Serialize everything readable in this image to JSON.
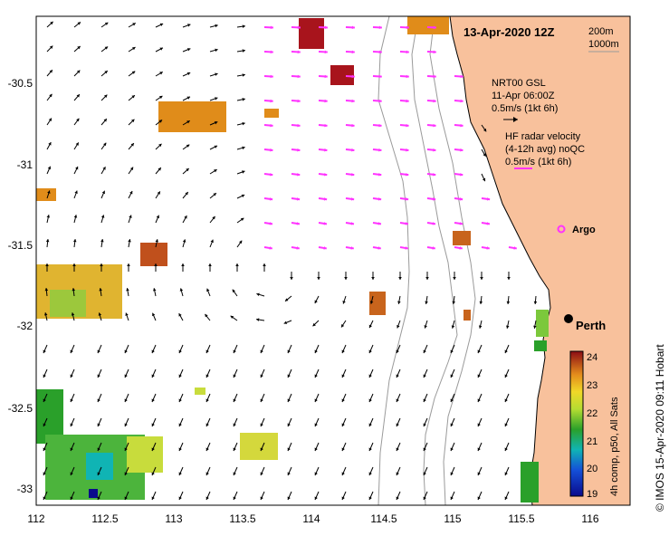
{
  "title": "13-Apr-2020 12Z",
  "scale_legend": {
    "contour1": "200m",
    "contour2": "1000m"
  },
  "gsl_legend": {
    "line1": "NRT00 GSL",
    "line2": "11-Apr 06:00Z",
    "line3": "0.5m/s (1kt 6h)"
  },
  "radar_legend": {
    "line1": "HF radar velocity",
    "line2": "(4-12h avg) noQC",
    "line3": "0.5m/s (1kt 6h)"
  },
  "argo_label": "Argo",
  "city_label": "Perth",
  "colorbar": {
    "label": "4h comp, p50, All Sats",
    "ticks": [
      "24",
      "23",
      "22",
      "21",
      "20",
      "19"
    ]
  },
  "credit": "© IMOS 15-Apr-2020 09:11 Hobart",
  "x_ticks": [
    "112",
    "112.5",
    "113",
    "113.5",
    "114",
    "114.5",
    "115",
    "115.5",
    "116"
  ],
  "y_ticks": [
    "-30.5",
    "-31",
    "-31.5",
    "-32",
    "-32.5",
    "-33"
  ],
  "colors": {
    "land": "#f8c19c",
    "radar_arrow": "#ff33ff",
    "model_arrow": "#000000",
    "contour": "#9a9a9a",
    "sst_warm": "#e08c1a",
    "sst_hot": "#a8141c",
    "sst_mid": "#c8d840",
    "sst_cool": "#2aa02a"
  }
}
